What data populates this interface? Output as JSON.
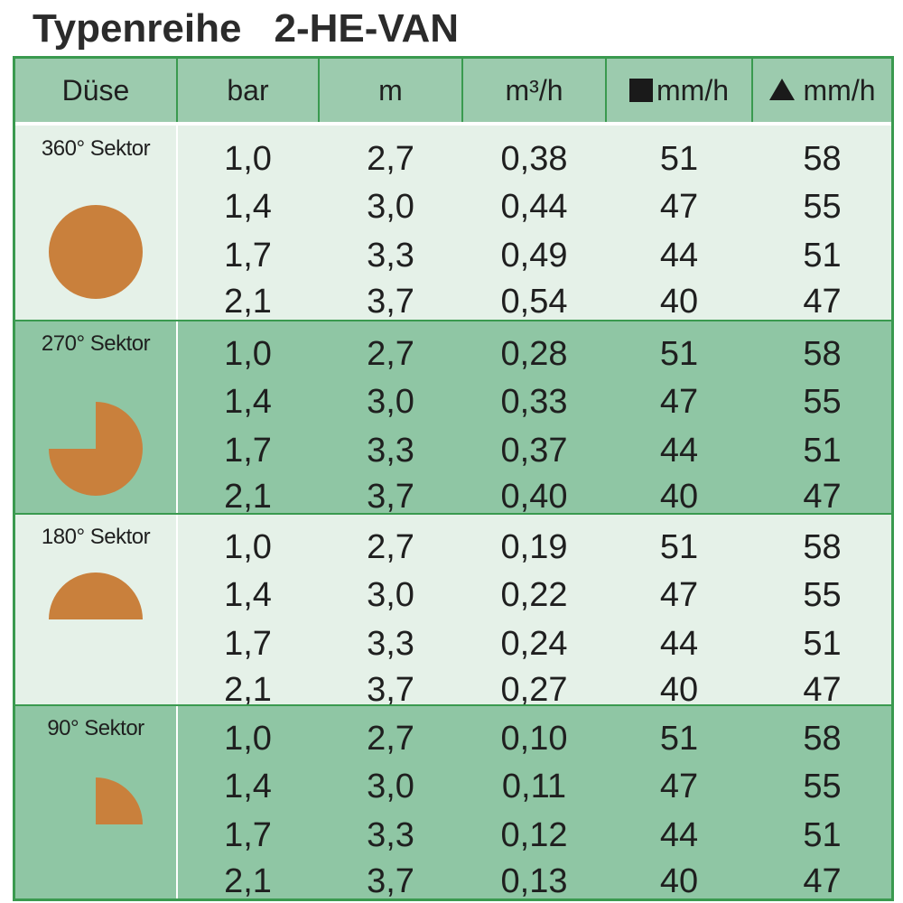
{
  "title": {
    "prefix": "Typenreihe",
    "series": "2-HE-VAN"
  },
  "headers": {
    "nozzle": "Düse",
    "pressure": "bar",
    "radius": "m",
    "flow": "m³/h",
    "precip_square": "mm/h",
    "precip_triangle": "mm/h"
  },
  "colors": {
    "header_bg": "#9ccbae",
    "light_row": "#e5f1e8",
    "dark_row": "#8fc6a4",
    "border": "#3a9a4f",
    "sector_fill": "#c9803c"
  },
  "groups": [
    {
      "label": "360° Sektor",
      "icon": "full-circle-icon",
      "rows": [
        {
          "bar": "1,0",
          "m": "2,7",
          "flow": "0,38",
          "sq": "51",
          "tri": "58"
        },
        {
          "bar": "1,4",
          "m": "3,0",
          "flow": "0,44",
          "sq": "47",
          "tri": "55"
        },
        {
          "bar": "1,7",
          "m": "3,3",
          "flow": "0,49",
          "sq": "44",
          "tri": "51"
        },
        {
          "bar": "2,1",
          "m": "3,7",
          "flow": "0,54",
          "sq": "40",
          "tri": "47"
        }
      ]
    },
    {
      "label": "270° Sektor",
      "icon": "three-quarter-circle-icon",
      "rows": [
        {
          "bar": "1,0",
          "m": "2,7",
          "flow": "0,28",
          "sq": "51",
          "tri": "58"
        },
        {
          "bar": "1,4",
          "m": "3,0",
          "flow": "0,33",
          "sq": "47",
          "tri": "55"
        },
        {
          "bar": "1,7",
          "m": "3,3",
          "flow": "0,37",
          "sq": "44",
          "tri": "51"
        },
        {
          "bar": "2,1",
          "m": "3,7",
          "flow": "0,40",
          "sq": "40",
          "tri": "47"
        }
      ]
    },
    {
      "label": "180° Sektor",
      "icon": "half-circle-icon",
      "rows": [
        {
          "bar": "1,0",
          "m": "2,7",
          "flow": "0,19",
          "sq": "51",
          "tri": "58"
        },
        {
          "bar": "1,4",
          "m": "3,0",
          "flow": "0,22",
          "sq": "47",
          "tri": "55"
        },
        {
          "bar": "1,7",
          "m": "3,3",
          "flow": "0,24",
          "sq": "44",
          "tri": "51"
        },
        {
          "bar": "2,1",
          "m": "3,7",
          "flow": "0,27",
          "sq": "40",
          "tri": "47"
        }
      ]
    },
    {
      "label": "90° Sektor",
      "icon": "quarter-circle-icon",
      "rows": [
        {
          "bar": "1,0",
          "m": "2,7",
          "flow": "0,10",
          "sq": "51",
          "tri": "58"
        },
        {
          "bar": "1,4",
          "m": "3,0",
          "flow": "0,11",
          "sq": "47",
          "tri": "55"
        },
        {
          "bar": "1,7",
          "m": "3,3",
          "flow": "0,12",
          "sq": "44",
          "tri": "51"
        },
        {
          "bar": "2,1",
          "m": "3,7",
          "flow": "0,13",
          "sq": "40",
          "tri": "47"
        }
      ]
    }
  ]
}
